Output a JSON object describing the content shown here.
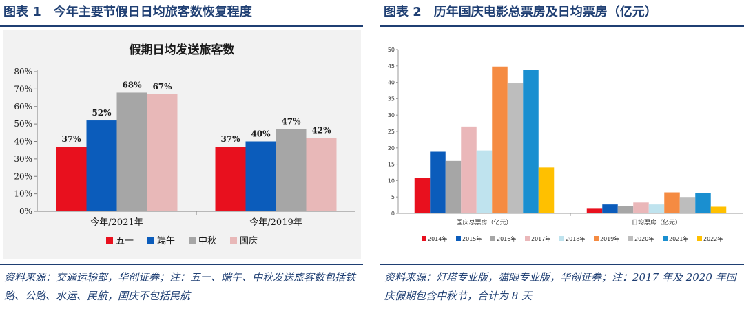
{
  "figure1": {
    "title": "图表 1　今年主要节假日日均旅客数恢复程度",
    "source": "资料来源：交通运输部，华创证券；注：五一、端午、中秋发送旅客数包括铁路、公路、水运、民航，国庆不包括民航",
    "chart_data": {
      "type": "bar",
      "title": "假期日均发送旅客数",
      "xlabel": "",
      "ylabel": "",
      "categories": [
        "今年/2021年",
        "今年/2019年"
      ],
      "series": [
        {
          "name": "五一",
          "values": [
            37,
            37
          ],
          "labels": [
            "37%",
            "37%"
          ]
        },
        {
          "name": "端午",
          "values": [
            52,
            40
          ],
          "labels": [
            "52%",
            "40%"
          ]
        },
        {
          "name": "中秋",
          "values": [
            68,
            47
          ],
          "labels": [
            "68%",
            "47%"
          ]
        },
        {
          "name": "国庆",
          "values": [
            67,
            42
          ],
          "labels": [
            "67%",
            "42%"
          ]
        }
      ],
      "colors": [
        "#e8101e",
        "#0b5cbb",
        "#a6a6a6",
        "#e8b8b8"
      ],
      "ylim": [
        0,
        80
      ],
      "yticks": [
        "0%",
        "10%",
        "20%",
        "30%",
        "40%",
        "50%",
        "60%",
        "70%",
        "80%"
      ],
      "grid": false,
      "legend": "bottom"
    }
  },
  "figure2": {
    "title": "图表 2　历年国庆电影总票房及日均票房（亿元）",
    "source": "资料来源：灯塔专业版，猫眼专业版，华创证券；注：2017 年及 2020 年国庆假期包含中秋节，合计为 8 天",
    "chart_data": {
      "type": "bar",
      "title": "",
      "xlabel": "",
      "ylabel": "",
      "categories": [
        "国庆总票房（亿元）",
        "日均票房（亿元）"
      ],
      "series": [
        {
          "name": "2014年",
          "values": [
            10.9,
            1.6
          ]
        },
        {
          "name": "2015年",
          "values": [
            18.8,
            2.7
          ]
        },
        {
          "name": "2016年",
          "values": [
            16.0,
            2.3
          ]
        },
        {
          "name": "2017年",
          "values": [
            26.5,
            3.3
          ]
        },
        {
          "name": "2018年",
          "values": [
            19.2,
            2.7
          ]
        },
        {
          "name": "2019年",
          "values": [
            44.8,
            6.4
          ]
        },
        {
          "name": "2020年",
          "values": [
            39.7,
            5.0
          ]
        },
        {
          "name": "2021年",
          "values": [
            43.9,
            6.3
          ]
        },
        {
          "name": "2022年",
          "values": [
            14.0,
            2.0
          ]
        }
      ],
      "colors": [
        "#e8101e",
        "#0b5cbb",
        "#a6a6a6",
        "#eab7b9",
        "#bfe3ee",
        "#f58b42",
        "#bdbdbd",
        "#1a8fd0",
        "#ffc000"
      ],
      "ylim": [
        0,
        50
      ],
      "yticks": [
        "0",
        "5",
        "10",
        "15",
        "20",
        "25",
        "30",
        "35",
        "40",
        "45",
        "50"
      ],
      "grid": false,
      "legend": "bottom"
    }
  }
}
